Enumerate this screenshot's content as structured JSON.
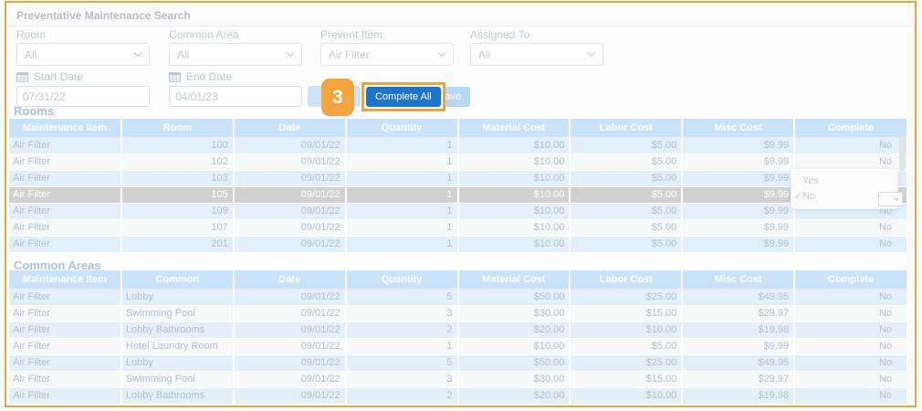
{
  "panel": {
    "title": "Preventative Maintenance Search"
  },
  "filters": [
    {
      "label": "Room",
      "value": "All"
    },
    {
      "label": "Common Area",
      "value": "All"
    },
    {
      "label": "Prevent Item",
      "value": "Air Filter"
    },
    {
      "label": "Assigned To",
      "value": "All"
    }
  ],
  "dates": [
    {
      "label": "Start Date",
      "value": "07/31/22"
    },
    {
      "label": "End Date",
      "value": "04/01/23"
    }
  ],
  "buttons": {
    "complete_all": "Complete All",
    "save": "Save"
  },
  "step_badge": "3",
  "rooms": {
    "heading": "Rooms",
    "columns": [
      "Maintenance Item",
      "Room",
      "Date",
      "Quantity",
      "Material Cost",
      "Labor Cost",
      "Misc Cost",
      "Complete"
    ],
    "selected_row_index": 3,
    "rows": [
      [
        "Air Filter",
        "100",
        "09/01/22",
        "1",
        "$10.00",
        "$5.00",
        "$9.99",
        "No"
      ],
      [
        "Air Filter",
        "102",
        "09/01/22",
        "1",
        "$10.00",
        "$5.00",
        "$9.99",
        "No"
      ],
      [
        "Air Filter",
        "103",
        "09/01/22",
        "1",
        "$10.00",
        "$5.00",
        "$9.99",
        "No"
      ],
      [
        "Air Filter",
        "105",
        "09/01/22",
        "1",
        "$10.00",
        "$5.00",
        "$9.99",
        "No"
      ],
      [
        "Air Filter",
        "109",
        "09/01/22",
        "1",
        "$10.00",
        "$5.00",
        "$9.99",
        "No"
      ],
      [
        "Air Filter",
        "107",
        "09/01/22",
        "1",
        "$10.00",
        "$5.00",
        "$9.99",
        "No"
      ],
      [
        "Air Filter",
        "201",
        "09/01/22",
        "1",
        "$10.00",
        "$5.00",
        "$9.99",
        "No"
      ]
    ]
  },
  "common_areas": {
    "heading": "Common Areas",
    "columns": [
      "Maintenance Item",
      "Common",
      "Date",
      "Quantity",
      "Material Cost",
      "Labor Cost",
      "Misc Cost",
      "Complete"
    ],
    "selected_row_index": -1,
    "rows": [
      [
        "Air Filter",
        "Lobby",
        "09/01/22",
        "5",
        "$50.00",
        "$25.00",
        "$49.95",
        "No"
      ],
      [
        "Air Filter",
        "Swimming Pool",
        "09/01/22",
        "3",
        "$30.00",
        "$15.00",
        "$29.97",
        "No"
      ],
      [
        "Air Filter",
        "Lobby Bathrooms",
        "09/01/22",
        "2",
        "$20.00",
        "$10.00",
        "$19.98",
        "No"
      ],
      [
        "Air Filter",
        "Hotel Laundry Room",
        "09/01/22",
        "1",
        "$10.00",
        "$5.00",
        "$9.99",
        "No"
      ],
      [
        "Air Filter",
        "Lobby",
        "09/01/22",
        "5",
        "$50.00",
        "$25.00",
        "$49.95",
        "No"
      ],
      [
        "Air Filter",
        "Swimming Pool",
        "09/01/22",
        "3",
        "$30.00",
        "$15.00",
        "$29.97",
        "No"
      ],
      [
        "Air Filter",
        "Lobby Bathrooms",
        "09/01/22",
        "2",
        "$20.00",
        "$10.00",
        "$19.98",
        "No"
      ]
    ]
  },
  "complete_dropdown": {
    "options": [
      "Yes",
      "No"
    ],
    "selected": "No",
    "checkmark_glyph": "✓"
  },
  "colors": {
    "frame_border": "#e8a63e",
    "step_badge_bg": "#f2a53e",
    "highlight_ring": "#eba441",
    "complete_all_bg": "#1e73ca",
    "save_bg": "#b7d8f3",
    "table_header_bg": "#cbe3f8",
    "row_alt_bg": "#e3f0fb",
    "selected_row_bg": "#d2d1cf"
  }
}
